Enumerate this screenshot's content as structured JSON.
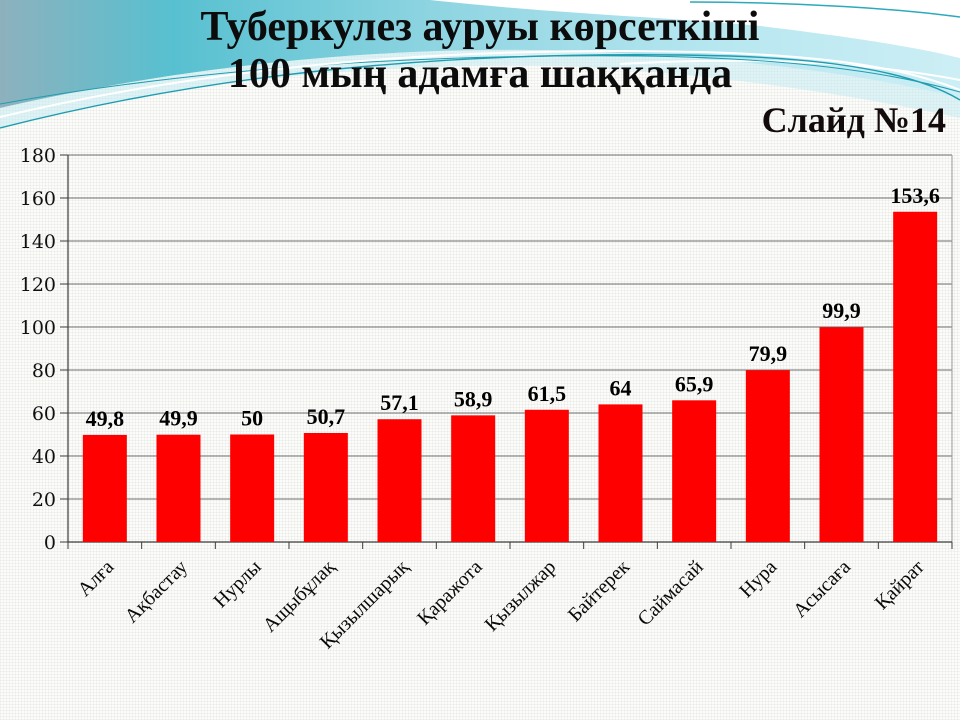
{
  "slide": {
    "title_line1": "Туберкулез ауруы көрсеткіші",
    "title_line2": "100 мың адамға шаққанда",
    "slide_number_label": "Слайд №14"
  },
  "chart_data": {
    "type": "bar",
    "title": "Туберкулез ауруы көрсеткіші 100 мың адамға шаққанда",
    "categories": [
      "Алға",
      "Ақбастау",
      "Нурлы",
      "Ащыбұлақ",
      "Қызылшарық",
      "Қаражота",
      "Қызылжар",
      "Байтерек",
      "Саймасай",
      "Нура",
      "Асысаға",
      "Қайрат"
    ],
    "values": [
      49.8,
      49.9,
      50,
      50.7,
      57.1,
      58.9,
      61.5,
      64,
      65.9,
      79.9,
      99.9,
      153.6
    ],
    "value_labels": [
      "49,8",
      "49,9",
      "50",
      "50,7",
      "57,1",
      "58,9",
      "61,5",
      "64",
      "65,9",
      "79,9",
      "99,9",
      "153,6"
    ],
    "xlabel": "",
    "ylabel": "",
    "ylim": [
      0,
      180
    ],
    "yticks": [
      0,
      20,
      40,
      60,
      80,
      100,
      120,
      140,
      160,
      180
    ],
    "grid": true,
    "legend_position": "none",
    "bar_color": "#fe0000"
  },
  "colors": {
    "bar": "#fe0000",
    "gridline": "#6e6e6e",
    "axis": "#3c3c3c",
    "plot_right_border": "#9a9a9a",
    "title_text": "#0c0c0c",
    "wave_steel_blue": "#8db1bd",
    "wave_teal": "#57c0d0",
    "wave_light_cyan": "#b7e7f0",
    "wave_line_teal": "#1f9db0"
  }
}
